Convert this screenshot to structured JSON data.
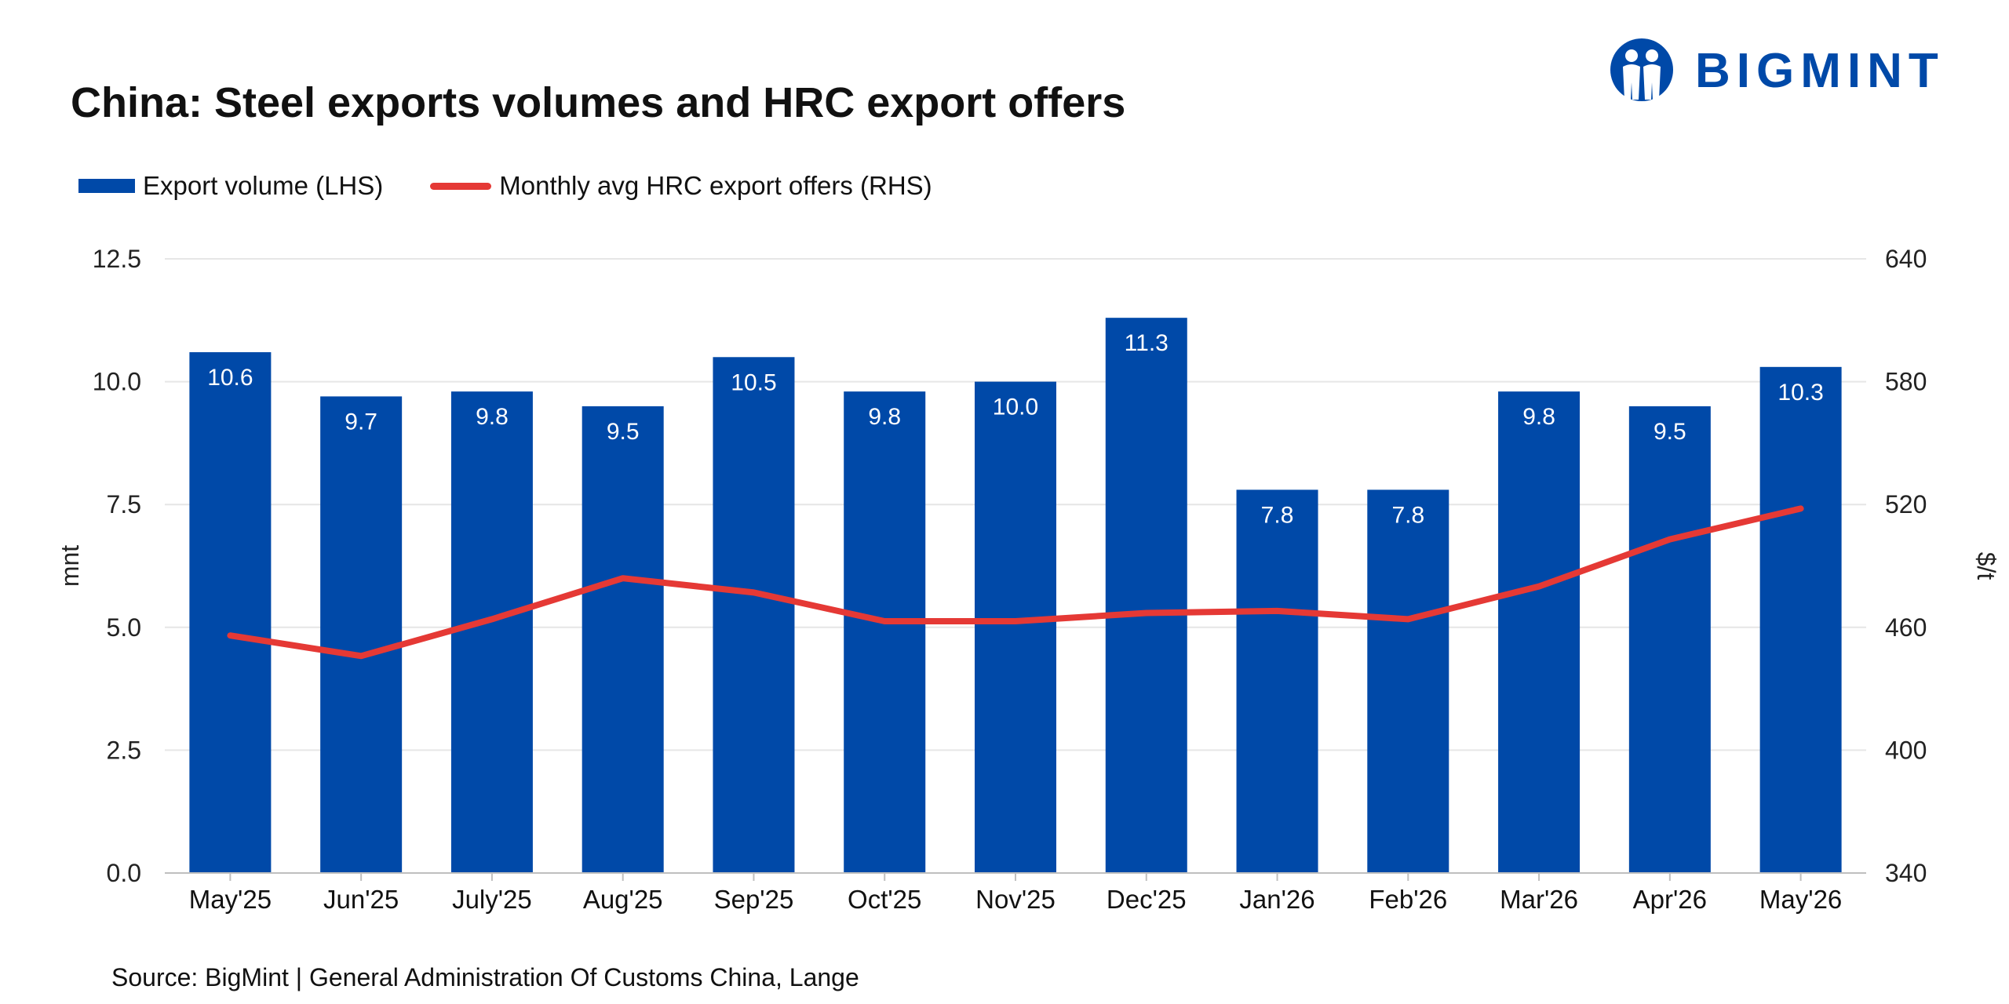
{
  "header": {
    "title": "China: Steel exports volumes and HRC export offers",
    "brand": "BIGMINT",
    "brand_icon": "people-logo-icon"
  },
  "legend": {
    "bar_label": "Export volume (LHS)",
    "line_label": "Monthly avg HRC export offers (RHS)"
  },
  "colors": {
    "bar": "#0049a8",
    "line": "#e53935",
    "brand": "#0049a8"
  },
  "source": "Source: BigMint | General Administration Of Customs China, Lange",
  "chart_data": {
    "type": "bar",
    "title": "China: Steel exports volumes and HRC export offers",
    "categories": [
      "May'25",
      "Jun'25",
      "July'25",
      "Aug'25",
      "Sep'25",
      "Oct'25",
      "Nov'25",
      "Dec'25",
      "Jan'26",
      "Feb'26",
      "Mar'26",
      "Apr'26",
      "May'26"
    ],
    "series": [
      {
        "name": "Export volume (LHS)",
        "type": "bar",
        "axis": "left",
        "values": [
          10.6,
          9.7,
          9.8,
          9.5,
          10.5,
          9.8,
          10.0,
          11.3,
          7.8,
          7.8,
          9.8,
          9.5,
          10.3
        ],
        "labels": [
          "10.6",
          "9.7",
          "9.8",
          "9.5",
          "10.5",
          "9.8",
          "10.0",
          "11.3",
          "7.8",
          "7.8",
          "9.8",
          "9.5",
          "10.3"
        ]
      },
      {
        "name": "Monthly avg HRC export offers (RHS)",
        "type": "line",
        "axis": "right",
        "values": [
          456,
          446,
          464,
          484,
          477,
          463,
          463,
          467,
          468,
          464,
          480,
          503,
          518
        ]
      }
    ],
    "y_left": {
      "label": "mnt",
      "min": 0,
      "max": 12.5,
      "ticks": [
        "0.0",
        "2.5",
        "5.0",
        "7.5",
        "10.0",
        "12.5"
      ]
    },
    "y_right": {
      "label": "$/t",
      "min": 340,
      "max": 640,
      "ticks": [
        "340",
        "400",
        "460",
        "520",
        "580",
        "640"
      ]
    },
    "grid": true,
    "legend_position": "top-left"
  }
}
